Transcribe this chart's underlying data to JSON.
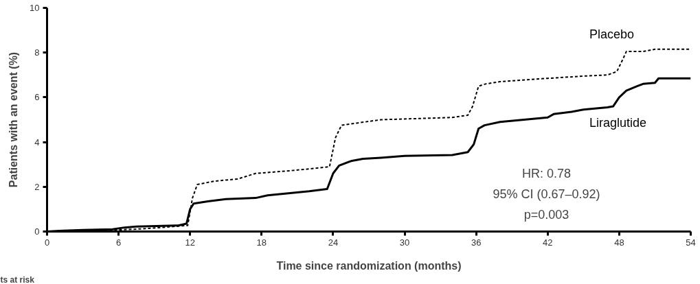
{
  "chart_data": {
    "type": "line",
    "xlabel": "Time since randomization (months)",
    "ylabel": "Patients with an event (%)",
    "xlim": [
      0,
      54
    ],
    "ylim": [
      0,
      10
    ],
    "xticks": [
      0,
      6,
      12,
      18,
      24,
      30,
      36,
      42,
      48,
      54
    ],
    "yticks": [
      0,
      2,
      4,
      6,
      8,
      10
    ],
    "grid": false,
    "marker": "none",
    "series": [
      {
        "name": "Placebo",
        "color": "#000000",
        "line_style": "dashed",
        "x": [
          0,
          5,
          8,
          11.8,
          12.2,
          12.6,
          14,
          16,
          17.5,
          20,
          22,
          23.7,
          24.2,
          24.7,
          26,
          28,
          34,
          35.3,
          35.7,
          36.2,
          36.8,
          38,
          42,
          45,
          47,
          47.8,
          48.3,
          48.6,
          50,
          51,
          54
        ],
        "values": [
          0,
          0.05,
          0.12,
          0.27,
          1.5,
          2.1,
          2.25,
          2.35,
          2.6,
          2.7,
          2.8,
          2.9,
          4.2,
          4.75,
          4.85,
          5.0,
          5.1,
          5.2,
          5.6,
          6.5,
          6.6,
          6.7,
          6.85,
          6.95,
          7.0,
          7.15,
          7.7,
          8.05,
          8.05,
          8.15,
          8.15
        ]
      },
      {
        "name": "Liraglutide",
        "color": "#000000",
        "line_style": "solid",
        "x": [
          0,
          1,
          3,
          5.5,
          6.5,
          7.5,
          11,
          11.7,
          12.0,
          12.3,
          13.5,
          15,
          17.5,
          18.5,
          22,
          23.5,
          24.0,
          24.5,
          25.5,
          26.5,
          28,
          30,
          34,
          35.3,
          35.8,
          36.2,
          36.7,
          38,
          40,
          42,
          42.5,
          44,
          45,
          47,
          47.5,
          48,
          48.6,
          49.5,
          50,
          51,
          51.3,
          54
        ],
        "values": [
          0,
          0.03,
          0.07,
          0.1,
          0.18,
          0.22,
          0.27,
          0.35,
          1.0,
          1.25,
          1.35,
          1.45,
          1.5,
          1.62,
          1.8,
          1.9,
          2.6,
          2.95,
          3.15,
          3.25,
          3.3,
          3.38,
          3.42,
          3.55,
          3.9,
          4.6,
          4.75,
          4.9,
          5.0,
          5.1,
          5.25,
          5.35,
          5.45,
          5.55,
          5.6,
          6.0,
          6.3,
          6.5,
          6.6,
          6.65,
          6.85,
          6.85
        ]
      }
    ],
    "annotations": [
      "HR: 0.78",
      "95% CI (0.67–0.92)",
      "p=0.003",
      "ts at risk"
    ]
  }
}
